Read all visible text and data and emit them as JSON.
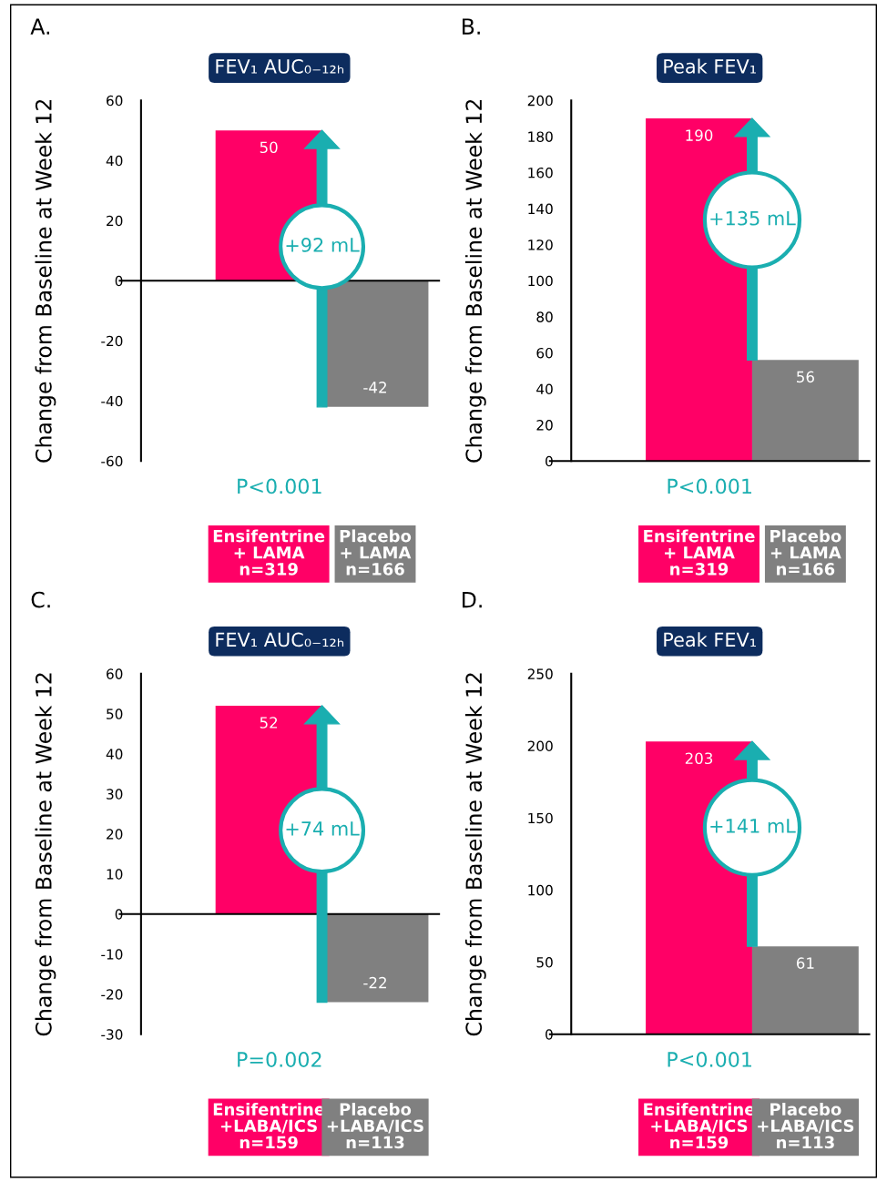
{
  "chart_data": [
    {
      "type": "bar",
      "title": "FEV₁ AUC₀₋₁₂ₕ",
      "ylabel": "Change from Baseline at Week 12",
      "categories": [
        "Ensifentrine\n+ LAMA\nn=319",
        "Placebo\n+ LAMA\nn=166"
      ],
      "values": [
        50,
        -42
      ],
      "colors": [
        "#ff0066",
        "#808080"
      ],
      "ylim": [
        -60,
        60
      ],
      "yticks": [
        -60,
        -40,
        -20,
        0,
        20,
        40,
        60
      ],
      "data_labels": true,
      "annotations": [
        "A.",
        "+92 mL",
        "P<0.001"
      ]
    },
    {
      "type": "bar",
      "title": "Peak FEV₁",
      "ylabel": "Change from Baseline at Week 12",
      "categories": [
        "Ensifentrine\n+ LAMA\nn=319",
        "Placebo\n+ LAMA\nn=166"
      ],
      "values": [
        190,
        56
      ],
      "colors": [
        "#ff0066",
        "#808080"
      ],
      "ylim": [
        0,
        200
      ],
      "yticks": [
        0,
        20,
        40,
        60,
        80,
        100,
        120,
        140,
        160,
        180,
        200
      ],
      "data_labels": true,
      "annotations": [
        "B.",
        "+135 mL",
        "P<0.001"
      ]
    },
    {
      "type": "bar",
      "title": "FEV₁ AUC₀₋₁₂ₕ",
      "ylabel": "Change from Baseline at Week 12",
      "categories": [
        "Ensifentrine\n+LABA/ICS\nn=159",
        "Placebo\n+LABA/ICS\nn=113"
      ],
      "values": [
        52,
        -22
      ],
      "colors": [
        "#ff0066",
        "#808080"
      ],
      "ylim": [
        -30,
        60
      ],
      "yticks": [
        -30,
        -20,
        -10,
        0,
        10,
        20,
        30,
        40,
        50,
        60
      ],
      "data_labels": true,
      "annotations": [
        "C.",
        "+74 mL",
        "P=0.002"
      ]
    },
    {
      "type": "bar",
      "title": "Peak FEV₁",
      "ylabel": "Change from Baseline at Week 12",
      "categories": [
        "Ensifentrine\n+LABA/ICS\nn=159",
        "Placebo\n+LABA/ICS\nn=113"
      ],
      "values": [
        203,
        61
      ],
      "colors": [
        "#ff0066",
        "#808080"
      ],
      "ylim": [
        0,
        250
      ],
      "yticks": [
        0,
        50,
        100,
        150,
        200,
        250
      ],
      "data_labels": true,
      "annotations": [
        "D.",
        "+141 mL",
        "P<0.001"
      ]
    }
  ]
}
